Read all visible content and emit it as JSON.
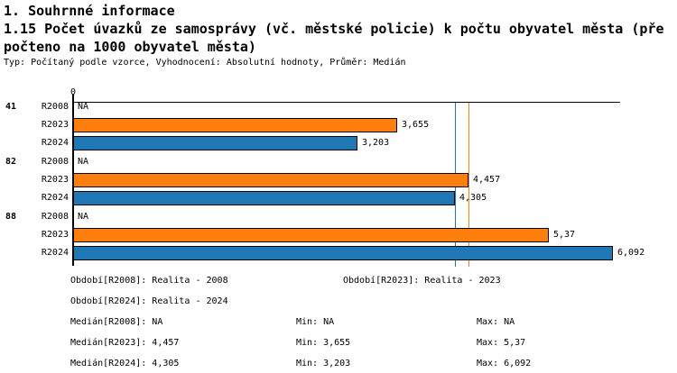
{
  "header": {
    "section_title": "1. Souhrnné informace",
    "indicator_title_line1": "1.15 Počet úvazků ze samosprávy (vč. městské policie) k počtu obyvatel města (pře",
    "indicator_title_line2": "počteno na 1000 obyvatel města)",
    "meta": "Typ: Počítaný podle vzorce, Vyhodnocení: Absolutní hodnoty, Průměr: Medián"
  },
  "chart_data": {
    "type": "bar",
    "orientation": "horizontal",
    "zero_tick_label": "0",
    "xlabel": "",
    "ylabel": "",
    "xlim": [
      0,
      6.17
    ],
    "grid": false,
    "categories": [
      "41",
      "82",
      "88"
    ],
    "series": [
      {
        "name": "R2008",
        "color": null,
        "values": [
          null,
          null,
          null
        ],
        "displays": [
          "NA",
          "NA",
          "NA"
        ]
      },
      {
        "name": "R2023",
        "color": "#ff7f0e",
        "values": [
          3.655,
          4.457,
          5.37
        ],
        "displays": [
          "3,655",
          "4,457",
          "5,37"
        ]
      },
      {
        "name": "R2024",
        "color": "#1f77b4",
        "values": [
          3.203,
          4.305,
          6.092
        ],
        "displays": [
          "3,203",
          "4,305",
          "6,092"
        ]
      }
    ],
    "reference_lines": [
      {
        "name": "median-r2024",
        "value": 4.305,
        "color": "#1f77b4"
      },
      {
        "name": "median-r2023",
        "value": 4.457,
        "color": "#ff7f0e"
      }
    ]
  },
  "summary": {
    "period_r2008": "Období[R2008]: Realita - 2008",
    "period_r2023": "Období[R2023]: Realita - 2023",
    "period_r2024": "Období[R2024]: Realita - 2024",
    "median_r2008": "Medián[R2008]: NA",
    "min_r2008": "Min: NA",
    "max_r2008": "Max: NA",
    "median_r2023": "Medián[R2023]: 4,457",
    "min_r2023": "Min: 3,655",
    "max_r2023": "Max: 5,37",
    "median_r2024": "Medián[R2024]: 4,305",
    "min_r2024": "Min: 3,203",
    "max_r2024": "Max: 6,092"
  }
}
